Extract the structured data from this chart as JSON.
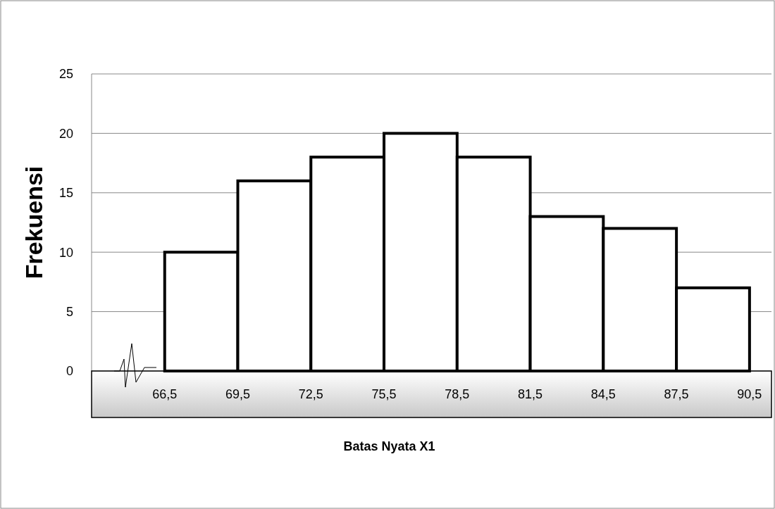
{
  "chart_data": {
    "type": "histogram",
    "xlabel": "Batas Nyata X1",
    "ylabel": "Frekuensi",
    "bins": [
      66.5,
      69.5,
      72.5,
      75.5,
      78.5,
      81.5,
      84.5,
      87.5,
      90.5
    ],
    "values": [
      10,
      16,
      18,
      20,
      18,
      13,
      12,
      7
    ],
    "color": "#ffffff",
    "xlim": [
      63.5,
      91.4
    ],
    "xticks": [
      {
        "value": 66.5,
        "label": "66,5"
      },
      {
        "value": 69.5,
        "label": "69,5"
      },
      {
        "value": 72.5,
        "label": "72,5"
      },
      {
        "value": 75.5,
        "label": "75,5"
      },
      {
        "value": 78.5,
        "label": "78,5"
      },
      {
        "value": 81.5,
        "label": "81,5"
      },
      {
        "value": 84.5,
        "label": "84,5"
      },
      {
        "value": 87.5,
        "label": "87,5"
      },
      {
        "value": 90.5,
        "label": "90,5"
      }
    ],
    "ylim": [
      0,
      25
    ],
    "yticks": [
      0,
      5,
      10,
      15,
      20,
      25
    ],
    "grid": "y"
  }
}
